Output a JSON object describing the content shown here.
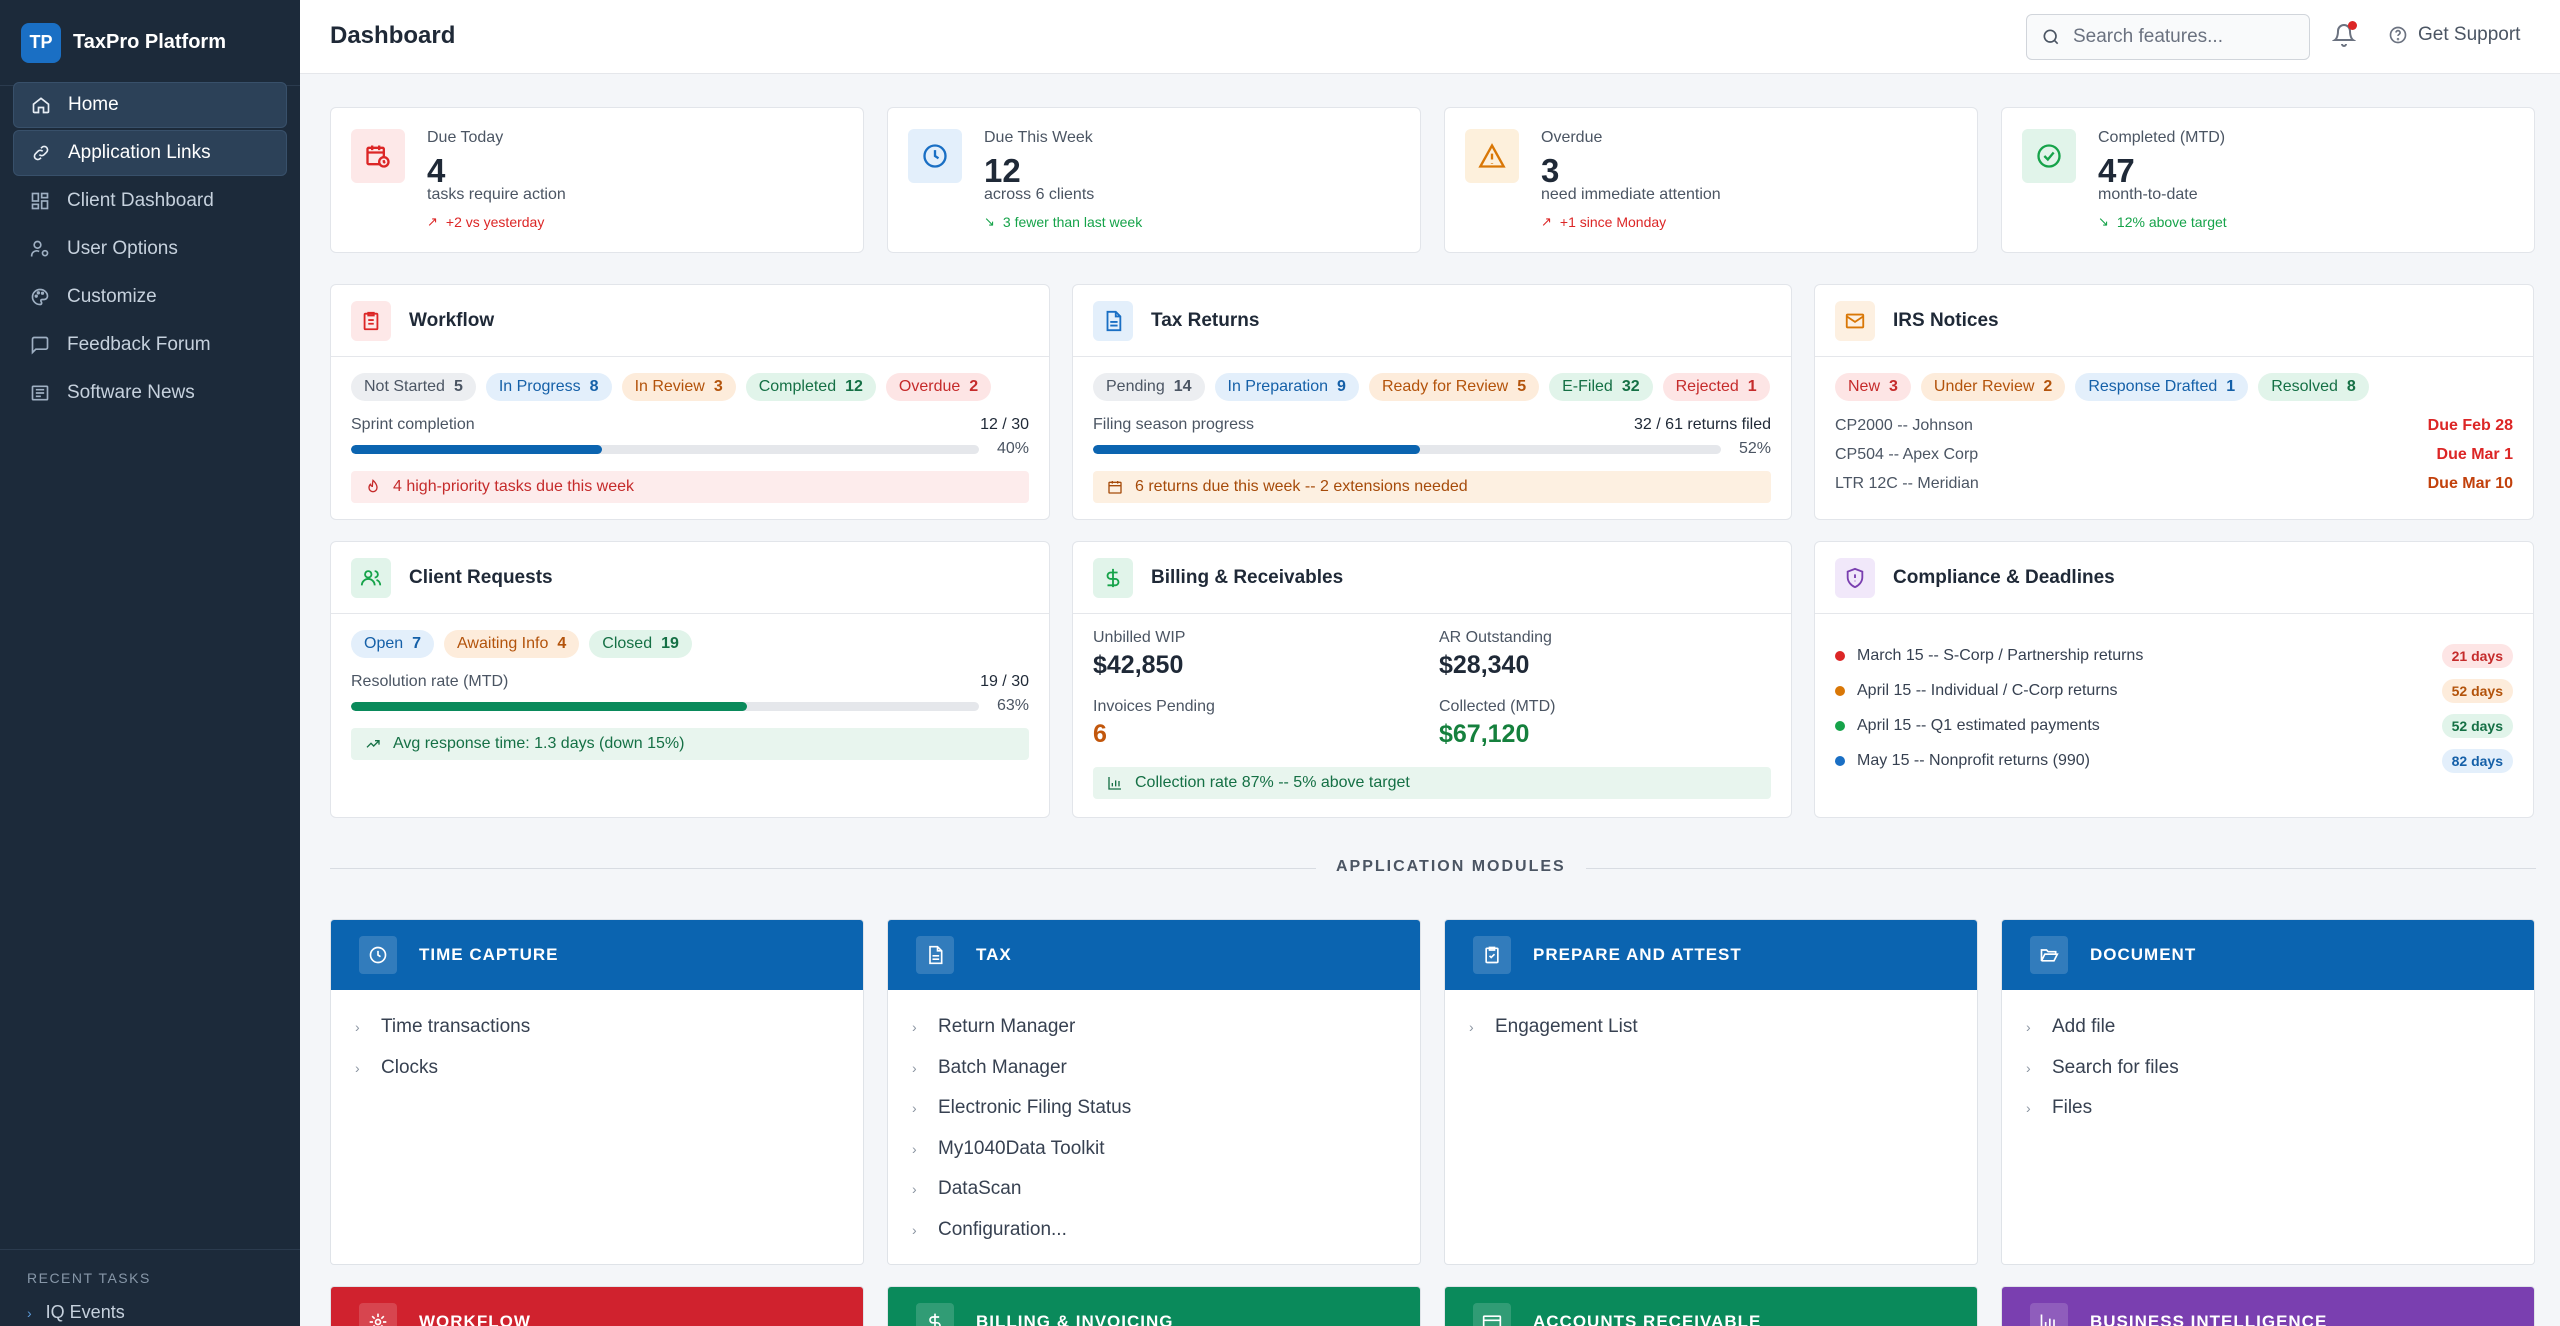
{
  "brand": {
    "logo_text": "TP",
    "name": "TaxPro Platform"
  },
  "sidebar": {
    "items": [
      {
        "label": "Home",
        "icon": "home-icon",
        "active": true
      },
      {
        "label": "Application Links",
        "icon": "link-icon",
        "active": true
      },
      {
        "label": "Client Dashboard",
        "icon": "grid-icon",
        "active": false
      },
      {
        "label": "User Options",
        "icon": "user-cog-icon",
        "active": false
      },
      {
        "label": "Customize",
        "icon": "palette-icon",
        "active": false
      },
      {
        "label": "Feedback Forum",
        "icon": "chat-icon",
        "active": false
      },
      {
        "label": "Software News",
        "icon": "newspaper-icon",
        "active": false
      }
    ],
    "recent_title": "RECENT TASKS",
    "recent_items": [
      "IQ Events"
    ]
  },
  "header": {
    "title": "Dashboard",
    "search_placeholder": "Search features...",
    "support_label": "Get Support"
  },
  "stats": [
    {
      "label": "Due Today",
      "value": "4",
      "sub": "tasks require action",
      "delta": "+2 vs yesterday",
      "delta_dir": "up",
      "color": "#dc2626",
      "icon": "calendar-clock-icon"
    },
    {
      "label": "Due This Week",
      "value": "12",
      "sub": "across 6 clients",
      "delta": "3 fewer than last week",
      "delta_dir": "down",
      "color": "#1a6fc4",
      "icon": "clock-icon"
    },
    {
      "label": "Overdue",
      "value": "3",
      "sub": "need immediate attention",
      "delta": "+1 since Monday",
      "delta_dir": "up",
      "color": "#d97706",
      "icon": "warning-icon"
    },
    {
      "label": "Completed (MTD)",
      "value": "47",
      "sub": "month-to-date",
      "delta": "12% above target",
      "delta_dir": "down",
      "color": "#16a34a",
      "icon": "check-circle-icon"
    }
  ],
  "workflow": {
    "title": "Workflow",
    "pills": [
      {
        "label": "Not Started",
        "count": "5",
        "tone": "gray"
      },
      {
        "label": "In Progress",
        "count": "8",
        "tone": "blue"
      },
      {
        "label": "In Review",
        "count": "3",
        "tone": "orange"
      },
      {
        "label": "Completed",
        "count": "12",
        "tone": "green"
      },
      {
        "label": "Overdue",
        "count": "2",
        "tone": "red"
      }
    ],
    "progress_label": "Sprint completion",
    "progress_value": "12 / 30",
    "progress_pct": "40%",
    "progress_fraction": 0.4,
    "alert": "4 high-priority tasks due this week"
  },
  "tax_returns": {
    "title": "Tax Returns",
    "pills": [
      {
        "label": "Pending",
        "count": "14",
        "tone": "gray"
      },
      {
        "label": "In Preparation",
        "count": "9",
        "tone": "blue"
      },
      {
        "label": "Ready for Review",
        "count": "5",
        "tone": "orange"
      },
      {
        "label": "E-Filed",
        "count": "32",
        "tone": "green"
      },
      {
        "label": "Rejected",
        "count": "1",
        "tone": "red"
      }
    ],
    "progress_label": "Filing season progress",
    "progress_value": "32 / 61 returns filed",
    "progress_pct": "52%",
    "progress_fraction": 0.52,
    "alert": "6 returns due this week -- 2 extensions needed"
  },
  "irs_notices": {
    "title": "IRS Notices",
    "pills": [
      {
        "label": "New",
        "count": "3",
        "tone": "red"
      },
      {
        "label": "Under Review",
        "count": "2",
        "tone": "orange"
      },
      {
        "label": "Response Drafted",
        "count": "1",
        "tone": "blue"
      },
      {
        "label": "Resolved",
        "count": "8",
        "tone": "green"
      }
    ],
    "rows": [
      {
        "name": "CP2000 -- Johnson",
        "due": "Due Feb 28",
        "color": "#dc2626"
      },
      {
        "name": "CP504 -- Apex Corp",
        "due": "Due Mar 1",
        "color": "#dc2626"
      },
      {
        "name": "LTR 12C -- Meridian",
        "due": "Due Mar 10",
        "color": "#c2410c"
      }
    ]
  },
  "client_requests": {
    "title": "Client Requests",
    "pills": [
      {
        "label": "Open",
        "count": "7",
        "tone": "blue"
      },
      {
        "label": "Awaiting Info",
        "count": "4",
        "tone": "orange"
      },
      {
        "label": "Closed",
        "count": "19",
        "tone": "green"
      }
    ],
    "progress_label": "Resolution rate (MTD)",
    "progress_value": "19 / 30",
    "progress_pct": "63%",
    "progress_fraction": 0.63,
    "alert": "Avg response time: 1.3 days (down 15%)"
  },
  "billing": {
    "title": "Billing & Receivables",
    "items": [
      {
        "label": "Unbilled WIP",
        "value": "$42,850",
        "color": "#1f2937"
      },
      {
        "label": "AR Outstanding",
        "value": "$28,340",
        "color": "#1f2937"
      },
      {
        "label": "Invoices Pending",
        "value": "6",
        "color": "#c2570c"
      },
      {
        "label": "Collected (MTD)",
        "value": "$67,120",
        "color": "#15803d"
      }
    ],
    "alert": "Collection rate 87% -- 5% above target"
  },
  "compliance": {
    "title": "Compliance & Deadlines",
    "rows": [
      {
        "text": "March 15 -- S-Corp / Partnership returns",
        "badge": "21 days",
        "dot": "#dc2626",
        "badge_bg": "#fde5e5",
        "badge_fg": "#c52b2b"
      },
      {
        "text": "April 15 -- Individual / C-Corp returns",
        "badge": "52 days",
        "dot": "#d97706",
        "badge_bg": "#fdecdb",
        "badge_fg": "#b3530b"
      },
      {
        "text": "April 15 -- Q1 estimated payments",
        "badge": "52 days",
        "dot": "#16a34a",
        "badge_bg": "#e1f4ea",
        "badge_fg": "#157045"
      },
      {
        "text": "May 15 -- Nonprofit returns (990)",
        "badge": "82 days",
        "dot": "#1a6fc4",
        "badge_bg": "#e3effb",
        "badge_fg": "#1560a8"
      }
    ]
  },
  "modules_label": "APPLICATION MODULES",
  "modules": [
    {
      "title": "TIME CAPTURE",
      "color": "#0b64b0",
      "icon": "clock-icon",
      "links": [
        "Time transactions",
        "Clocks"
      ]
    },
    {
      "title": "TAX",
      "color": "#0b64b0",
      "icon": "document-icon",
      "links": [
        "Return Manager",
        "Batch Manager",
        "Electronic Filing Status",
        "My1040Data Toolkit",
        "DataScan",
        "Configuration..."
      ]
    },
    {
      "title": "PREPARE AND ATTEST",
      "color": "#0b64b0",
      "icon": "clipboard-check-icon",
      "links": [
        "Engagement List"
      ]
    },
    {
      "title": "DOCUMENT",
      "color": "#0b64b0",
      "icon": "folder-open-icon",
      "links": [
        "Add file",
        "Search for files",
        "Files"
      ]
    }
  ],
  "modules_row2": [
    {
      "title": "WORKFLOW",
      "color": "#d0222e",
      "icon": "workflow-icon"
    },
    {
      "title": "BILLING & INVOICING",
      "color": "#0a8a5b",
      "icon": "dollar-icon"
    },
    {
      "title": "ACCOUNTS RECEIVABLE",
      "color": "#0a8a5b",
      "icon": "card-icon"
    },
    {
      "title": "BUSINESS INTELLIGENCE",
      "color": "#7a3fb0",
      "icon": "bar-chart-icon"
    }
  ]
}
